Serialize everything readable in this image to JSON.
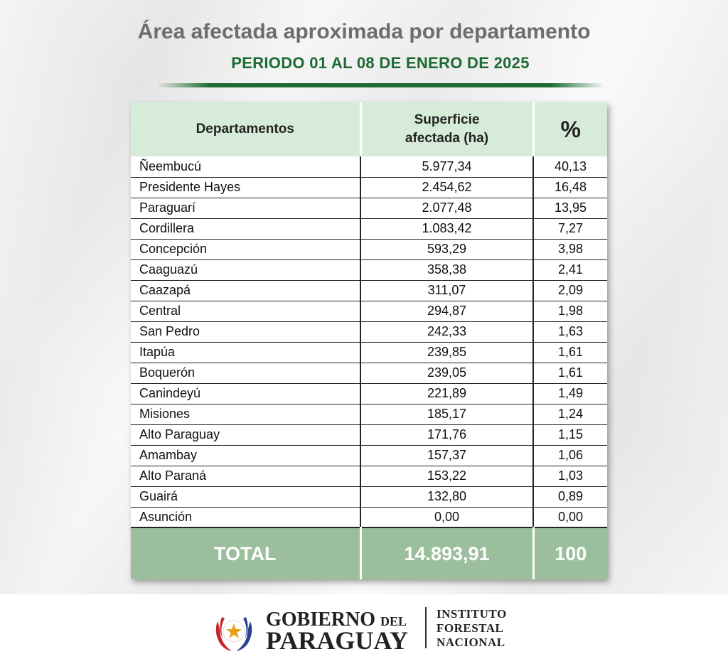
{
  "header": {
    "title": "Área afectada aproximada por departamento",
    "subtitle": "PERIODO 01 AL 08 DE ENERO DE 2025"
  },
  "table": {
    "headers": [
      "Departamentos",
      "Superficie afectada (ha)",
      "%"
    ],
    "rows": [
      [
        "Ñeembucú",
        "5.977,34",
        "40,13"
      ],
      [
        "Presidente Hayes",
        "2.454,62",
        "16,48"
      ],
      [
        "Paraguarí",
        "2.077,48",
        "13,95"
      ],
      [
        "Cordillera",
        "1.083,42",
        "7,27"
      ],
      [
        "Concepción",
        "593,29",
        "3,98"
      ],
      [
        "Caaguazú",
        "358,38",
        "2,41"
      ],
      [
        "Caazapá",
        "311,07",
        "2,09"
      ],
      [
        "Central",
        "294,87",
        "1,98"
      ],
      [
        "San Pedro",
        "242,33",
        "1,63"
      ],
      [
        "Itapúa",
        "239,85",
        "1,61"
      ],
      [
        "Boquerón",
        "239,05",
        "1,61"
      ],
      [
        "Canindeyú",
        "221,89",
        "1,49"
      ],
      [
        "Misiones",
        "185,17",
        "1,24"
      ],
      [
        "Alto Paraguay",
        "171,76",
        "1,15"
      ],
      [
        "Amambay",
        "157,37",
        "1,06"
      ],
      [
        "Alto Paraná",
        "153,22",
        "1,03"
      ],
      [
        "Guairá",
        "132,80",
        "0,89"
      ],
      [
        "Asunción",
        "0,00",
        "0,00"
      ]
    ],
    "total": [
      "TOTAL",
      "14.893,91",
      "100"
    ]
  },
  "footer": {
    "gov_line1": "GOBIERNO",
    "gov_del": "DEL",
    "gov_line2": "PARAGUAY",
    "inst_line1": "INSTITUTO",
    "inst_line2": "FORESTAL",
    "inst_line3": "NACIONAL",
    "emblem_icon": "paraguay-coat-of-arms-icon"
  },
  "colors": {
    "accent_green": "#1d6b32",
    "header_bg": "#d6ecd9",
    "total_bg": "#9bbf9c",
    "title_gray": "#6d6d6d"
  }
}
